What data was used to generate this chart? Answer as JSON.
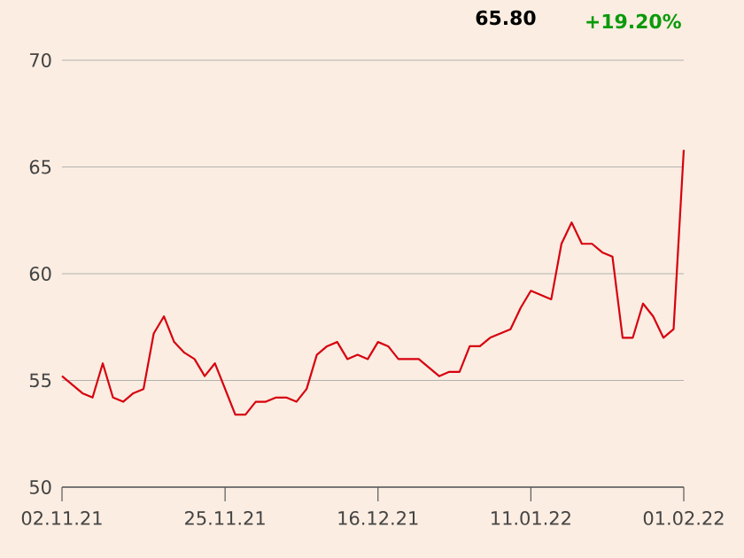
{
  "chart_data": {
    "type": "line",
    "categories": [
      "02.11.21",
      null,
      null,
      null,
      null,
      null,
      null,
      null,
      null,
      null,
      null,
      null,
      null,
      null,
      null,
      null,
      "25.11.21",
      null,
      null,
      null,
      null,
      null,
      null,
      null,
      null,
      null,
      null,
      null,
      null,
      null,
      null,
      "16.12.21",
      null,
      null,
      null,
      null,
      null,
      null,
      null,
      null,
      null,
      null,
      null,
      null,
      null,
      null,
      "11.01.22",
      null,
      null,
      null,
      null,
      null,
      null,
      null,
      null,
      null,
      null,
      null,
      null,
      null,
      null,
      "01.02.22"
    ],
    "series": [
      {
        "color": "#d7000f",
        "values": [
          55.2,
          54.8,
          54.4,
          54.2,
          55.8,
          54.2,
          54.0,
          54.4,
          54.6,
          57.2,
          58.0,
          56.8,
          56.3,
          56.0,
          55.2,
          55.8,
          54.6,
          53.4,
          53.4,
          54.0,
          54.0,
          54.2,
          54.2,
          54.0,
          54.6,
          56.2,
          56.6,
          56.8,
          56.0,
          56.2,
          56.0,
          56.8,
          56.6,
          56.0,
          56.0,
          56.0,
          55.6,
          55.2,
          55.4,
          55.4,
          56.6,
          56.6,
          57.0,
          57.2,
          57.4,
          58.4,
          59.2,
          59.0,
          58.8,
          61.4,
          62.4,
          61.4,
          61.4,
          61.0,
          60.8,
          57.0,
          57.0,
          58.6,
          58.0,
          57.0,
          57.4,
          65.8
        ]
      }
    ],
    "ylim": [
      50,
      70
    ],
    "yticks": [
      50,
      55,
      60,
      65,
      70
    ],
    "grid": "y",
    "annotations": [
      "65.80",
      "+19.20%"
    ]
  }
}
